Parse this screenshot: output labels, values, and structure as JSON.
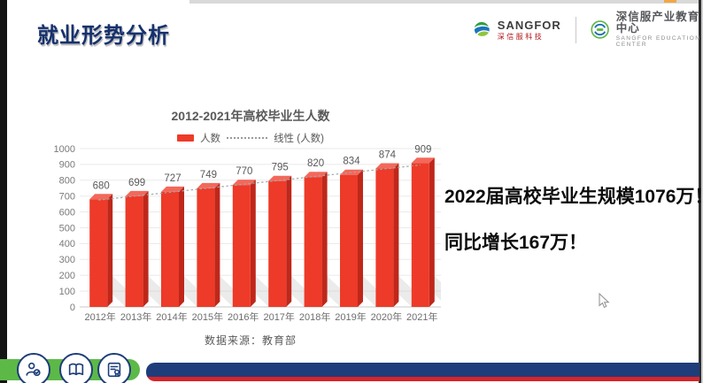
{
  "slide": {
    "title": "就业形势分析",
    "highlight_line1": "2022届高校毕业生规模1076万！",
    "highlight_line2": "同比增长167万！"
  },
  "header": {
    "sangfor_logo": {
      "name": "SANGFOR",
      "subtitle": "深信服科技"
    },
    "education_center": {
      "title": "深信服产业教育中心",
      "subtitle": "SANGFOR EDUCATION CENTER"
    }
  },
  "chart_data": {
    "type": "bar",
    "title": "2012-2021年高校毕业生人数",
    "categories": [
      "2012年",
      "2013年",
      "2014年",
      "2015年",
      "2016年",
      "2017年",
      "2018年",
      "2019年",
      "2020年",
      "2021年"
    ],
    "series": [
      {
        "name": "人数",
        "values": [
          680,
          699,
          727,
          749,
          770,
          795,
          820,
          834,
          874,
          909
        ]
      }
    ],
    "trendline": {
      "name": "线性 (人数)",
      "type": "linear"
    },
    "xlabel": "",
    "ylabel": "",
    "ylim": [
      0,
      1000
    ],
    "ytick_step": 100,
    "grid": true,
    "legend_position": "top",
    "bar_color": "#ee3a28",
    "bar_color_side": "#bf271a",
    "bar_color_top": "#f3685b",
    "trend_color": "#9fa8aa",
    "source": "数据来源：教育部"
  },
  "footer": {
    "icons": [
      "user-check-icon",
      "book-icon",
      "certificate-icon"
    ],
    "bar_color": "#1e3d7a",
    "stripe_color": "#d8242a",
    "pill_color": "#5cb947"
  },
  "colors": {
    "title_navy": "#16316d",
    "text_black": "#0c0c0c"
  }
}
